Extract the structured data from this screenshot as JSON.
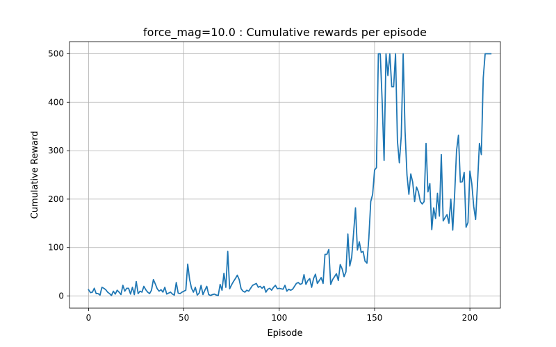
{
  "chart_data": {
    "type": "line",
    "title": "force_mag=10.0 : Cumulative rewards per episode",
    "xlabel": "Episode",
    "ylabel": "Cumulative Reward",
    "xlim": [
      -10,
      216
    ],
    "ylim": [
      -25,
      525
    ],
    "xticks": [
      0,
      50,
      100,
      150,
      200
    ],
    "yticks": [
      0,
      100,
      200,
      300,
      400,
      500
    ],
    "grid": true,
    "colors": {
      "series": "#1f77b4"
    },
    "series": [
      {
        "name": "Cumulative rewards",
        "values": [
          13,
          7,
          8,
          16,
          5,
          5,
          2,
          18,
          16,
          13,
          8,
          5,
          1,
          10,
          4,
          12,
          8,
          3,
          22,
          10,
          16,
          16,
          4,
          18,
          3,
          30,
          5,
          10,
          8,
          20,
          13,
          8,
          5,
          12,
          34,
          25,
          15,
          10,
          13,
          8,
          18,
          4,
          6,
          8,
          4,
          2,
          28,
          6,
          5,
          8,
          10,
          12,
          66,
          34,
          16,
          8,
          18,
          2,
          6,
          22,
          3,
          12,
          20,
          3,
          1,
          3,
          4,
          2,
          1,
          24,
          12,
          47,
          18,
          92,
          15,
          23,
          30,
          36,
          43,
          34,
          15,
          10,
          8,
          12,
          10,
          16,
          22,
          24,
          26,
          18,
          20,
          16,
          20,
          8,
          14,
          16,
          12,
          18,
          22,
          15,
          16,
          15,
          14,
          22,
          10,
          14,
          12,
          14,
          20,
          26,
          28,
          24,
          26,
          44,
          24,
          32,
          36,
          18,
          36,
          45,
          26,
          32,
          38,
          26,
          86,
          86,
          96,
          24,
          34,
          40,
          46,
          32,
          65,
          56,
          40,
          50,
          128,
          62,
          80,
          130,
          182,
          95,
          112,
          90,
          92,
          72,
          68,
          120,
          195,
          210,
          260,
          265,
          500,
          500,
          400,
          280,
          500,
          455,
          500,
          432,
          432,
          500,
          320,
          275,
          330,
          500,
          340,
          250,
          210,
          252,
          235,
          195,
          225,
          215,
          195,
          190,
          195,
          315,
          215,
          232,
          137,
          182,
          160,
          212,
          165,
          292,
          155,
          162,
          168,
          150,
          200,
          136,
          210,
          300,
          332,
          235,
          236,
          255,
          142,
          152,
          258,
          232,
          185,
          158,
          232,
          315,
          292,
          450,
          500,
          500,
          500,
          500
        ]
      }
    ]
  }
}
